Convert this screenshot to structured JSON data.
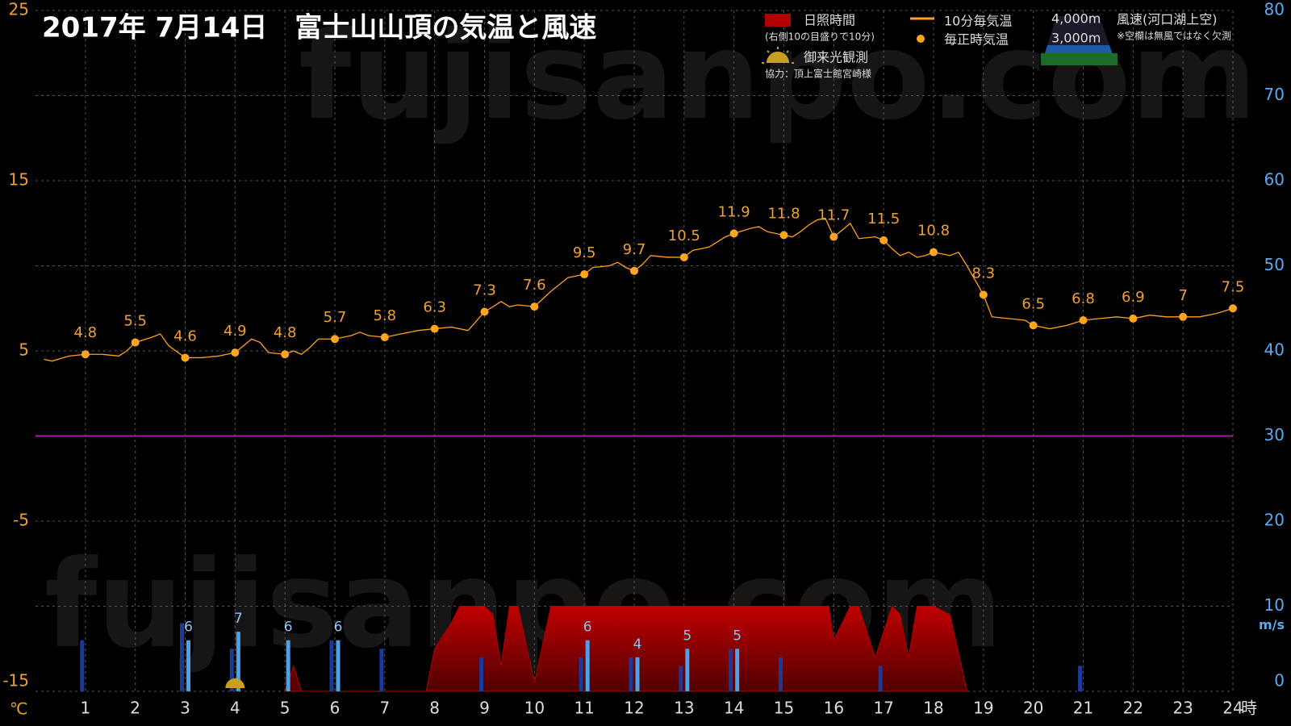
{
  "chart_data": {
    "type": "combo",
    "title": "2017年 7月14日　富士山山頂の気温と風速",
    "watermark": "fujisanpo.com",
    "sunrise_label": "御来光観測",
    "credit": "協力：頂上富士館宮崎様",
    "xlim": [
      0,
      24
    ],
    "xticks": [
      1,
      2,
      3,
      4,
      5,
      6,
      7,
      8,
      9,
      10,
      11,
      12,
      13,
      14,
      15,
      16,
      17,
      18,
      19,
      20,
      21,
      22,
      23,
      24
    ],
    "x_unit": "時",
    "ylim": [
      -15,
      25
    ],
    "yticks": [
      -15,
      -5,
      5,
      15,
      25
    ],
    "y_unit": "℃",
    "y2lim": [
      0,
      80
    ],
    "y2ticks": [
      0,
      10,
      20,
      30,
      40,
      50,
      60,
      70,
      80
    ],
    "y2_unit": "m/s",
    "grid": true,
    "zero_line": {
      "value": 0,
      "color": "#a0209f"
    },
    "temperature_10min": {
      "name": "10分毎気温",
      "color": "#ff9f1a",
      "x": [
        0.17,
        0.33,
        0.67,
        1.0,
        1.33,
        1.67,
        1.83,
        2.0,
        2.33,
        2.5,
        2.67,
        3.0,
        3.33,
        3.67,
        4.0,
        4.17,
        4.33,
        4.5,
        4.67,
        5.0,
        5.17,
        5.33,
        5.5,
        5.67,
        6.0,
        6.33,
        6.5,
        6.67,
        7.0,
        7.33,
        7.67,
        8.0,
        8.33,
        8.67,
        9.0,
        9.17,
        9.33,
        9.5,
        9.67,
        10.0,
        10.33,
        10.67,
        11.0,
        11.17,
        11.5,
        11.67,
        11.83,
        12.0,
        12.17,
        12.33,
        12.67,
        13.0,
        13.17,
        13.5,
        13.83,
        14.0,
        14.33,
        14.5,
        14.67,
        15.0,
        15.17,
        15.33,
        15.5,
        15.67,
        15.83,
        16.0,
        16.17,
        16.33,
        16.5,
        16.83,
        17.0,
        17.17,
        17.33,
        17.5,
        17.67,
        17.83,
        18.0,
        18.17,
        18.33,
        18.5,
        18.67,
        19.0,
        19.17,
        19.5,
        19.83,
        20.0,
        20.33,
        20.67,
        21.0,
        21.33,
        21.67,
        22.0,
        22.33,
        22.67,
        23.0,
        23.33,
        23.67,
        24.0
      ],
      "values": [
        4.5,
        4.4,
        4.7,
        4.8,
        4.8,
        4.7,
        5.0,
        5.5,
        5.8,
        6.0,
        5.3,
        4.6,
        4.6,
        4.7,
        4.9,
        5.3,
        5.7,
        5.5,
        4.9,
        4.8,
        5.0,
        4.8,
        5.2,
        5.7,
        5.7,
        5.9,
        6.1,
        5.9,
        5.8,
        6.0,
        6.2,
        6.3,
        6.4,
        6.2,
        7.3,
        7.6,
        7.9,
        7.6,
        7.7,
        7.6,
        8.5,
        9.3,
        9.5,
        9.9,
        10.0,
        10.2,
        9.9,
        9.7,
        10.1,
        10.6,
        10.5,
        10.5,
        10.9,
        11.1,
        11.7,
        11.9,
        12.2,
        12.3,
        12.0,
        11.8,
        11.7,
        12.0,
        12.4,
        12.7,
        12.8,
        11.7,
        12.1,
        12.5,
        11.6,
        11.7,
        11.5,
        11.0,
        10.6,
        10.8,
        10.5,
        10.6,
        10.8,
        10.7,
        10.6,
        10.8,
        10.0,
        8.3,
        7.0,
        6.9,
        6.8,
        6.5,
        6.3,
        6.5,
        6.8,
        6.9,
        7.0,
        6.9,
        7.1,
        7.0,
        7.0,
        7.0,
        7.2,
        7.5
      ]
    },
    "temperature_hourly": {
      "name": "毎正時気温",
      "color": "#ffa51f",
      "x": [
        1,
        2,
        3,
        4,
        5,
        6,
        7,
        8,
        9,
        10,
        11,
        12,
        13,
        14,
        15,
        16,
        17,
        18,
        19,
        20,
        21,
        22,
        23,
        24
      ],
      "values": [
        4.8,
        5.5,
        4.6,
        4.9,
        4.8,
        5.7,
        5.8,
        6.3,
        7.3,
        7.6,
        9.5,
        9.7,
        10.5,
        11.9,
        11.8,
        11.7,
        11.5,
        10.8,
        8.3,
        6.5,
        6.8,
        6.9,
        7,
        7.5
      ]
    },
    "sunshine": {
      "name": "日照時間",
      "note": "(右側10の目盛りで10分)",
      "color": "#b00000",
      "x": [
        5.0,
        5.17,
        5.33,
        7.83,
        8.0,
        8.33,
        8.5,
        9.0,
        9.17,
        9.33,
        9.5,
        9.67,
        10.0,
        10.33,
        10.5,
        11.0,
        15.9,
        16.0,
        16.33,
        16.5,
        16.83,
        17.0,
        17.17,
        17.33,
        17.5,
        17.67,
        18.0,
        18.33,
        18.67
      ],
      "values": [
        0,
        3,
        0,
        0,
        5,
        8,
        10,
        10,
        9,
        3,
        10,
        10,
        1,
        10,
        10,
        10,
        10,
        6,
        10,
        10,
        4,
        7,
        10,
        9,
        4,
        10,
        10,
        9,
        0
      ]
    },
    "wind": {
      "title": "風速(河口湖上空)",
      "note": "※空欄は無風ではなく欠測",
      "x": [
        1,
        2,
        3,
        4,
        5,
        6,
        7,
        8,
        9,
        10,
        11,
        12,
        13,
        14,
        15,
        16,
        17,
        18,
        19,
        20,
        21,
        22,
        23,
        24
      ],
      "series": [
        {
          "name": "4,000m",
          "color": "#1a3a9a",
          "values": [
            6,
            null,
            8,
            5,
            null,
            6,
            5,
            null,
            4,
            null,
            4,
            4,
            3,
            5,
            4,
            null,
            3,
            null,
            null,
            null,
            3,
            null,
            null,
            null
          ]
        },
        {
          "name": "3,000m",
          "color": "#4aa3e8",
          "values": [
            null,
            null,
            6,
            7,
            6,
            6,
            null,
            null,
            null,
            null,
            6,
            4,
            5,
            5,
            null,
            null,
            null,
            null,
            null,
            null,
            null,
            null,
            null,
            null
          ]
        }
      ]
    }
  }
}
